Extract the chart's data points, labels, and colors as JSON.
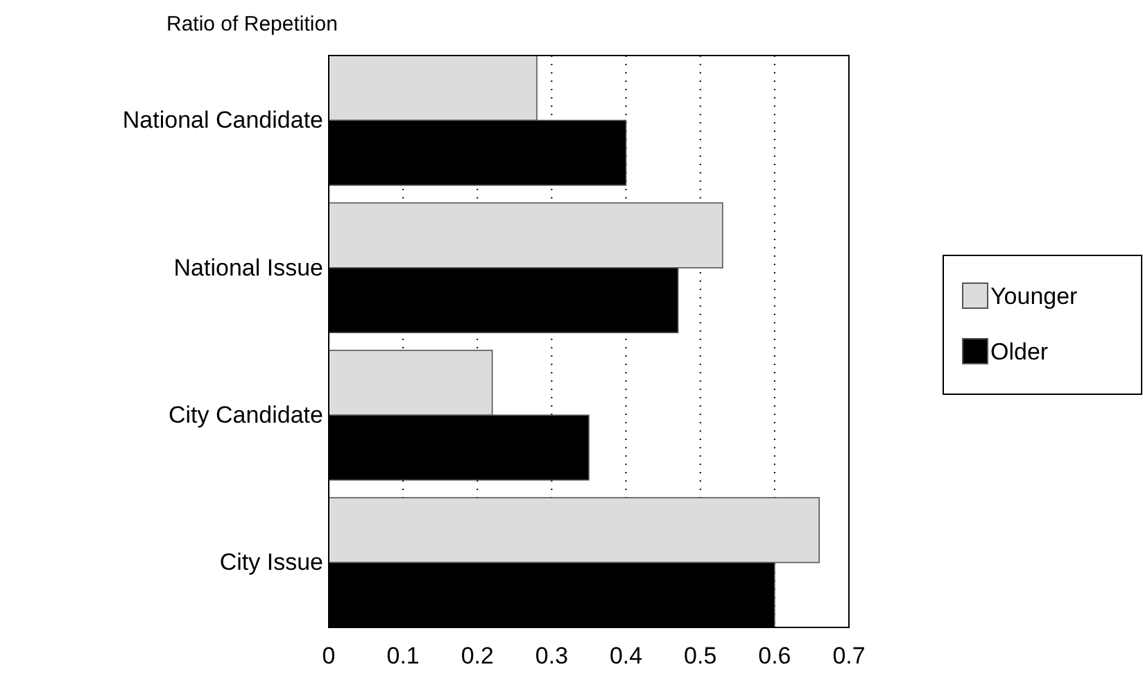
{
  "chart_data": {
    "type": "bar",
    "orientation": "horizontal",
    "title": "Ratio of Repetition",
    "categories": [
      "National Candidate",
      "National Issue",
      "City Candidate",
      "City Issue"
    ],
    "series": [
      {
        "name": "Younger",
        "color": "#dcdcdc",
        "values": [
          0.28,
          0.53,
          0.22,
          0.66
        ]
      },
      {
        "name": "Older",
        "color": "#000000",
        "values": [
          0.4,
          0.47,
          0.35,
          0.6
        ]
      }
    ],
    "xlim": [
      0,
      0.7
    ],
    "xticks": [
      0,
      0.1,
      0.2,
      0.3,
      0.4,
      0.5,
      0.6,
      0.7
    ],
    "grid": "x",
    "legend": "right"
  }
}
